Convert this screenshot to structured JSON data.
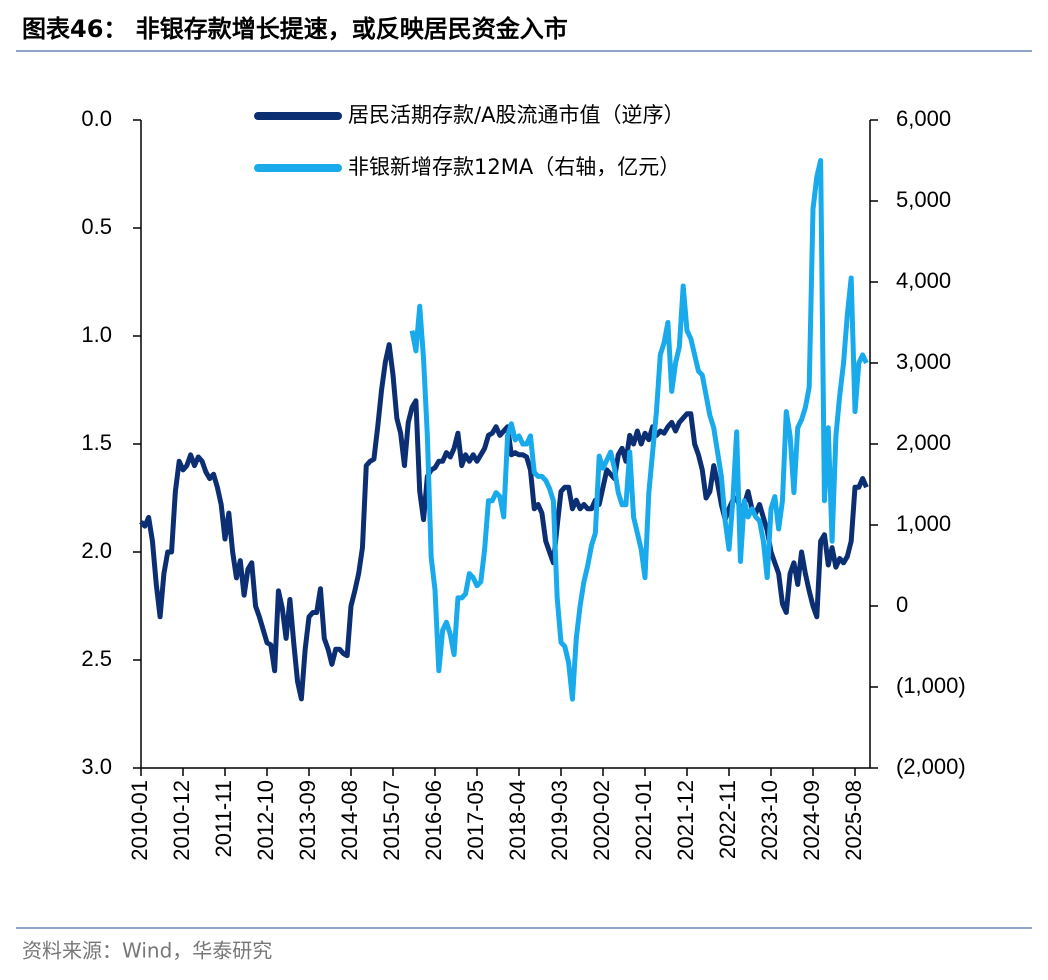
{
  "title": "图表46：  非银存款增长提速，或反映居民资金入市",
  "source": "资料来源：Wind，华泰研究",
  "chart_data": {
    "type": "line",
    "categories": [
      "2010-01",
      null,
      null,
      null,
      null,
      null,
      null,
      null,
      null,
      null,
      null,
      "2010-12",
      null,
      null,
      null,
      null,
      null,
      null,
      null,
      null,
      null,
      null,
      "2011-11",
      null,
      null,
      null,
      null,
      null,
      null,
      null,
      null,
      null,
      null,
      "2012-10",
      null,
      null,
      null,
      null,
      null,
      null,
      null,
      null,
      null,
      null,
      "2013-09",
      null,
      null,
      null,
      null,
      null,
      null,
      null,
      null,
      null,
      null,
      "2014-08",
      null,
      null,
      null,
      null,
      null,
      null,
      null,
      null,
      null,
      null,
      "2015-07",
      null,
      null,
      null,
      null,
      null,
      null,
      null,
      null,
      null,
      null,
      "2016-06",
      null,
      null,
      null,
      null,
      null,
      null,
      null,
      null,
      null,
      null,
      "2017-05",
      null,
      null,
      null,
      null,
      null,
      null,
      null,
      null,
      null,
      null,
      "2018-04",
      null,
      null,
      null,
      null,
      null,
      null,
      null,
      null,
      null,
      null,
      "2019-03",
      null,
      null,
      null,
      null,
      null,
      null,
      null,
      null,
      null,
      null,
      "2020-02",
      null,
      null,
      null,
      null,
      null,
      null,
      null,
      null,
      null,
      null,
      "2021-01",
      null,
      null,
      null,
      null,
      null,
      null,
      null,
      null,
      null,
      null,
      "2021-12",
      null,
      null,
      null,
      null,
      null,
      null,
      null,
      null,
      null,
      null,
      "2022-11",
      null,
      null,
      null,
      null,
      null,
      null,
      null,
      null,
      null,
      null,
      "2023-10",
      null,
      null,
      null,
      null,
      null,
      null,
      null,
      null,
      null,
      null,
      "2024-09",
      null,
      null,
      null,
      null,
      null,
      null,
      null,
      null,
      null,
      null,
      "2025-08",
      null,
      null,
      null
    ],
    "series": [
      {
        "name": "居民活期存款/A股流通市值（逆序）",
        "color": "#0b2f72",
        "axis": "y",
        "values": [
          1.86,
          1.88,
          1.84,
          1.95,
          2.15,
          2.3,
          2.1,
          2.0,
          2.0,
          1.72,
          1.58,
          1.62,
          1.6,
          1.55,
          1.6,
          1.56,
          1.58,
          1.63,
          1.66,
          1.64,
          1.7,
          1.78,
          1.94,
          1.82,
          2.0,
          2.12,
          2.04,
          2.2,
          2.08,
          2.05,
          2.25,
          2.3,
          2.36,
          2.42,
          2.43,
          2.55,
          2.18,
          2.26,
          2.4,
          2.22,
          2.42,
          2.6,
          2.68,
          2.45,
          2.3,
          2.28,
          2.28,
          2.17,
          2.4,
          2.45,
          2.52,
          2.45,
          2.45,
          2.47,
          2.48,
          2.25,
          2.18,
          2.1,
          1.98,
          1.6,
          1.58,
          1.57,
          1.42,
          1.25,
          1.12,
          1.04,
          1.18,
          1.38,
          1.45,
          1.6,
          1.4,
          1.33,
          1.3,
          1.72,
          1.85,
          1.65,
          1.62,
          1.61,
          1.58,
          1.58,
          1.54,
          1.56,
          1.52,
          1.45,
          1.6,
          1.55,
          1.58,
          1.55,
          1.58,
          1.55,
          1.52,
          1.46,
          1.45,
          1.42,
          1.46,
          1.44,
          1.42,
          1.55,
          1.54,
          1.55,
          1.55,
          1.56,
          1.62,
          1.8,
          1.78,
          1.82,
          1.95,
          2.0,
          2.05,
          1.88,
          1.72,
          1.7,
          1.7,
          1.8,
          1.76,
          1.8,
          1.78,
          1.8,
          1.8,
          1.76,
          1.78,
          1.7,
          1.62,
          1.64,
          1.66,
          1.55,
          1.52,
          1.58,
          1.46,
          1.5,
          1.44,
          1.5,
          1.45,
          1.48,
          1.42,
          1.46,
          1.44,
          1.45,
          1.42,
          1.4,
          1.44,
          1.4,
          1.38,
          1.36,
          1.36,
          1.5,
          1.55,
          1.62,
          1.75,
          1.72,
          1.6,
          1.68,
          1.78,
          1.85,
          1.8,
          1.76,
          1.75,
          1.8,
          1.78,
          1.72,
          1.8,
          1.82,
          1.78,
          1.84,
          1.9,
          2.0,
          2.05,
          2.1,
          2.24,
          2.28,
          2.1,
          2.05,
          2.15,
          2.0,
          2.1,
          2.18,
          2.25,
          2.3,
          1.95,
          1.92,
          2.06,
          1.98,
          2.07,
          2.03,
          2.05,
          2.02,
          1.95,
          1.7,
          1.7,
          1.66,
          1.7
        ]
      },
      {
        "name": "非银新增存款12MA（右轴，亿元）",
        "color": "#19aaec",
        "axis": "y2",
        "values": [
          null,
          null,
          null,
          null,
          null,
          null,
          null,
          null,
          null,
          null,
          null,
          null,
          null,
          null,
          null,
          null,
          null,
          null,
          null,
          null,
          null,
          null,
          null,
          null,
          null,
          null,
          null,
          null,
          null,
          null,
          null,
          null,
          null,
          null,
          null,
          null,
          null,
          null,
          null,
          null,
          null,
          null,
          null,
          null,
          null,
          null,
          null,
          null,
          null,
          null,
          null,
          null,
          null,
          null,
          null,
          null,
          null,
          null,
          null,
          null,
          null,
          null,
          null,
          null,
          null,
          null,
          null,
          null,
          null,
          null,
          null,
          3400,
          3150,
          3700,
          3050,
          2100,
          600,
          200,
          -800,
          -300,
          -200,
          -350,
          -600,
          100,
          100,
          150,
          400,
          350,
          250,
          300,
          700,
          1300,
          1300,
          1400,
          1350,
          1100,
          2100,
          2250,
          2050,
          2100,
          2000,
          2000,
          2100,
          1650,
          1600,
          1600,
          1550,
          1450,
          1300,
          100,
          -450,
          -500,
          -700,
          -1150,
          -400,
          0,
          300,
          500,
          750,
          900,
          1850,
          1700,
          1800,
          1900,
          1700,
          1400,
          1250,
          1250,
          1900,
          1100,
          900,
          700,
          350,
          1400,
          1900,
          2400,
          3100,
          3250,
          3500,
          2650,
          3000,
          3200,
          3950,
          3400,
          3300,
          3100,
          2900,
          2850,
          2600,
          2350,
          2200,
          1900,
          1600,
          1050,
          700,
          1300,
          2150,
          550,
          1300,
          1100,
          1200,
          1100,
          1050,
          800,
          350,
          1200,
          1350,
          950,
          1300,
          2400,
          2100,
          1400,
          2200,
          2300,
          2450,
          2700,
          4900,
          5300,
          5500,
          1300,
          2200,
          800,
          2100,
          2600,
          3000,
          3600,
          4050,
          2400,
          3000,
          3100,
          3000
        ]
      }
    ],
    "ylim": [
      0,
      3
    ],
    "y_inverted": true,
    "yticks": [
      {
        "value": 0,
        "label": "0.0"
      },
      0.5,
      {
        "value": 1,
        "label": "1.0"
      },
      1.5,
      {
        "value": 2,
        "label": "2.0"
      },
      2.5,
      {
        "value": 3,
        "label": "3.0"
      }
    ],
    "y2lim": [
      -2000,
      6000
    ],
    "y2ticks": [
      {
        "value": 6000,
        "label": "6,000"
      },
      {
        "value": 5000,
        "label": "5,000"
      },
      {
        "value": 4000,
        "label": "4,000"
      },
      {
        "value": 3000,
        "label": "3,000"
      },
      {
        "value": 2000,
        "label": "2,000"
      },
      {
        "value": 1000,
        "label": "1,000"
      },
      0,
      {
        "value": -1000,
        "label": "(1,000)"
      },
      {
        "value": -2000,
        "label": "(2,000)"
      }
    ],
    "grid": false
  }
}
